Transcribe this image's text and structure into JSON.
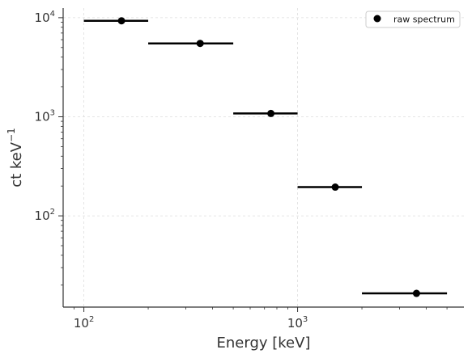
{
  "chart_data": {
    "type": "scatter",
    "title": "",
    "xlabel": "Energy [keV]",
    "ylabel_main": "ct keV",
    "ylabel_sup": "−1",
    "xscale": "log",
    "yscale": "log",
    "xlim": [
      80,
      6000
    ],
    "ylim": [
      12,
      12500
    ],
    "grid": true,
    "legend_position": "top-right",
    "xticks": [
      {
        "value": 100,
        "base": "10",
        "exp": "2"
      },
      {
        "value": 1000,
        "base": "10",
        "exp": "3"
      }
    ],
    "yticks": [
      {
        "value": 100,
        "base": "10",
        "exp": "2"
      },
      {
        "value": 1000,
        "base": "10",
        "exp": "3"
      },
      {
        "value": 10000,
        "base": "10",
        "exp": "4"
      }
    ],
    "series": [
      {
        "name": "raw spectrum",
        "color": "#000000",
        "points": [
          {
            "x": 150,
            "xmin": 100,
            "xmax": 200,
            "y": 9300
          },
          {
            "x": 350,
            "xmin": 200,
            "xmax": 500,
            "y": 5500
          },
          {
            "x": 750,
            "xmin": 500,
            "xmax": 1000,
            "y": 1080
          },
          {
            "x": 1500,
            "xmin": 1000,
            "xmax": 2000,
            "y": 195
          },
          {
            "x": 3600,
            "xmin": 2000,
            "xmax": 5000,
            "y": 16.5
          }
        ]
      }
    ]
  }
}
